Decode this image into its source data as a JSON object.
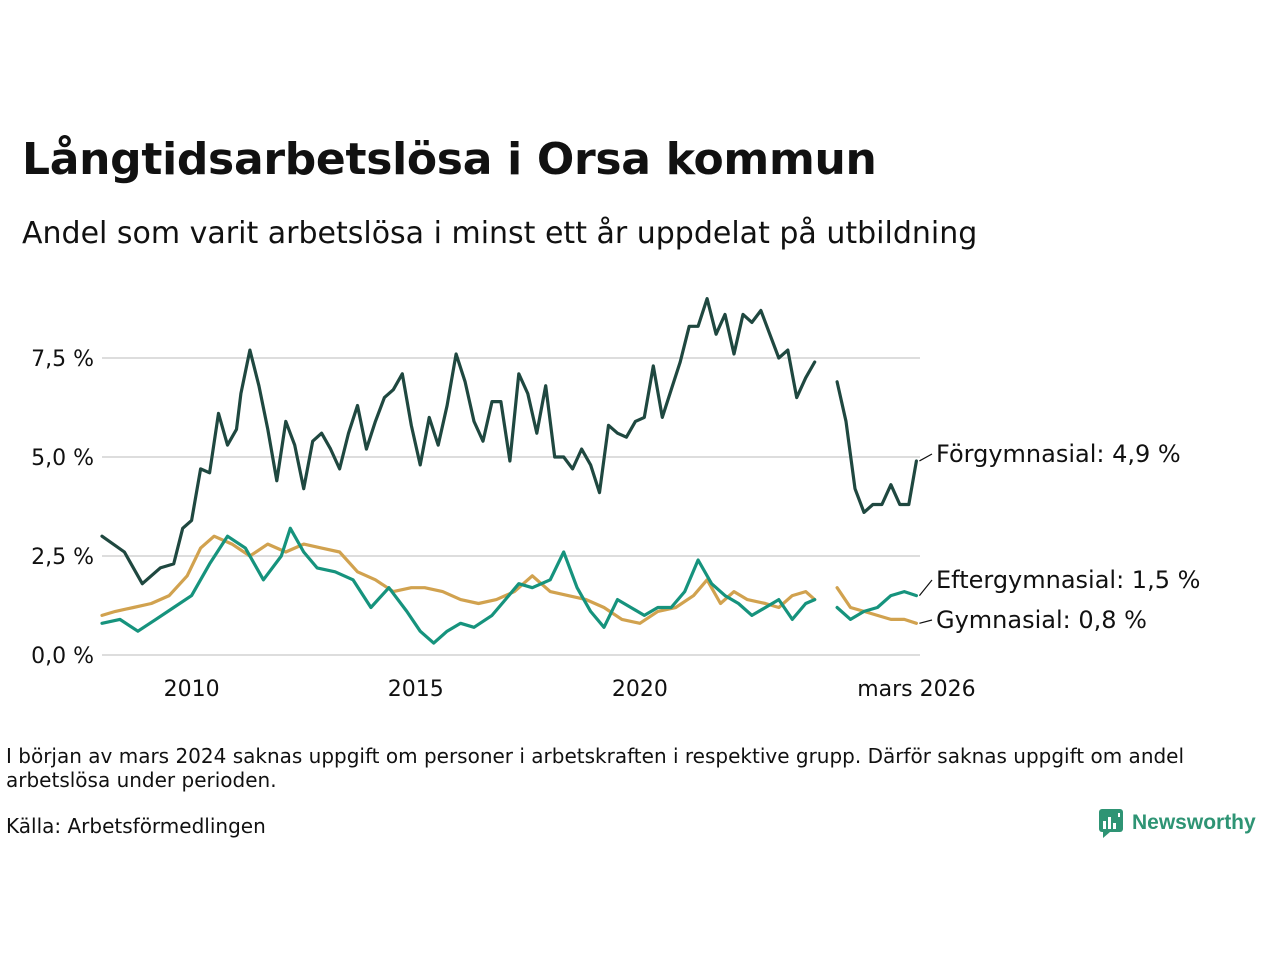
{
  "title": "Långtidsarbetslösa i Orsa kommun",
  "subtitle": "Andel som varit arbetslösa i minst ett år uppdelat på utbildning",
  "note": "I början av mars 2024 saknas uppgift om personer i arbetskraften i respektive grupp. Därför saknas uppgift om andel arbetslösa under perioden.",
  "source": "Källa: Arbetsförmedlingen",
  "logo": {
    "name": "Newsworthy",
    "icon": "newsworthy-chart-icon"
  },
  "colors": {
    "forgymnasial": "#1f4840",
    "eftergymnasial": "#16937d",
    "gymnasial": "#d1a24f",
    "grid": "#dddddd"
  },
  "chart_data": {
    "type": "line",
    "title": "Långtidsarbetslösa i Orsa kommun",
    "subtitle": "Andel som varit arbetslösa i minst ett år uppdelat på utbildning",
    "xlabel": "",
    "ylabel": "",
    "x_range": [
      2008.0,
      2026.25
    ],
    "ylim": [
      0,
      9.1
    ],
    "y_ticks": [
      0,
      2.5,
      5,
      7.5
    ],
    "y_tick_labels": [
      "0,0 %",
      "2,5 %",
      "5,0 %",
      "7,5 %"
    ],
    "x_ticks": [
      2010,
      2015,
      2020,
      2026.17
    ],
    "x_tick_labels": [
      "2010",
      "2015",
      "2020",
      "mars 2026"
    ],
    "grid": "horizontal",
    "gap": [
      2024.0,
      2024.4
    ],
    "series": [
      {
        "name": "Förgymnasial",
        "label": "Förgymnasial: 4,9 %",
        "color": "#1f4840",
        "x": [
          2008.0,
          2008.5,
          2008.9,
          2009.3,
          2009.6,
          2009.8,
          2010.0,
          2010.2,
          2010.4,
          2010.6,
          2010.8,
          2011.0,
          2011.1,
          2011.3,
          2011.5,
          2011.7,
          2011.9,
          2012.1,
          2012.3,
          2012.5,
          2012.7,
          2012.9,
          2013.1,
          2013.3,
          2013.5,
          2013.7,
          2013.9,
          2014.1,
          2014.3,
          2014.5,
          2014.7,
          2014.9,
          2015.1,
          2015.3,
          2015.5,
          2015.7,
          2015.9,
          2016.1,
          2016.3,
          2016.5,
          2016.7,
          2016.9,
          2017.1,
          2017.3,
          2017.5,
          2017.7,
          2017.9,
          2018.1,
          2018.3,
          2018.5,
          2018.7,
          2018.9,
          2019.1,
          2019.3,
          2019.5,
          2019.7,
          2019.9,
          2020.1,
          2020.3,
          2020.5,
          2020.7,
          2020.9,
          2021.1,
          2021.3,
          2021.5,
          2021.7,
          2021.9,
          2022.1,
          2022.3,
          2022.5,
          2022.7,
          2022.9,
          2023.1,
          2023.3,
          2023.5,
          2023.7,
          2023.9,
          2024.4,
          2024.6,
          2024.8,
          2025.0,
          2025.2,
          2025.4,
          2025.6,
          2025.8,
          2026.0,
          2026.17
        ],
        "values": [
          3.0,
          2.6,
          1.8,
          2.2,
          2.3,
          3.2,
          3.4,
          4.7,
          4.6,
          6.1,
          5.3,
          5.7,
          6.6,
          7.7,
          6.8,
          5.7,
          4.4,
          5.9,
          5.3,
          4.2,
          5.4,
          5.6,
          5.2,
          4.7,
          5.6,
          6.3,
          5.2,
          5.9,
          6.5,
          6.7,
          7.1,
          5.8,
          4.8,
          6.0,
          5.3,
          6.3,
          7.6,
          6.9,
          5.9,
          5.4,
          6.4,
          6.4,
          4.9,
          7.1,
          6.6,
          5.6,
          6.8,
          5.0,
          5.0,
          4.7,
          5.2,
          4.8,
          4.1,
          5.8,
          5.6,
          5.5,
          5.9,
          6.0,
          7.3,
          6.0,
          6.7,
          7.4,
          8.3,
          8.3,
          9.0,
          8.1,
          8.6,
          7.6,
          8.6,
          8.4,
          8.7,
          8.1,
          7.5,
          7.7,
          6.5,
          7.0,
          7.4,
          6.9,
          5.9,
          4.2,
          3.6,
          3.8,
          3.8,
          4.3,
          3.8,
          3.8,
          4.9
        ]
      },
      {
        "name": "Eftergymnasial",
        "label": "Eftergymnasial: 1,5 %",
        "color": "#16937d",
        "x": [
          2008.0,
          2008.4,
          2008.8,
          2009.2,
          2009.6,
          2010.0,
          2010.4,
          2010.8,
          2011.2,
          2011.6,
          2012.0,
          2012.2,
          2012.5,
          2012.8,
          2013.2,
          2013.6,
          2014.0,
          2014.4,
          2014.8,
          2015.1,
          2015.4,
          2015.7,
          2016.0,
          2016.3,
          2016.7,
          2017.0,
          2017.3,
          2017.6,
          2018.0,
          2018.3,
          2018.6,
          2018.9,
          2019.2,
          2019.5,
          2019.8,
          2020.1,
          2020.4,
          2020.7,
          2021.0,
          2021.3,
          2021.6,
          2021.9,
          2022.2,
          2022.5,
          2022.8,
          2023.1,
          2023.4,
          2023.7,
          2023.9,
          2024.4,
          2024.7,
          2025.0,
          2025.3,
          2025.6,
          2025.9,
          2026.17
        ],
        "values": [
          0.8,
          0.9,
          0.6,
          0.9,
          1.2,
          1.5,
          2.3,
          3.0,
          2.7,
          1.9,
          2.5,
          3.2,
          2.6,
          2.2,
          2.1,
          1.9,
          1.2,
          1.7,
          1.1,
          0.6,
          0.3,
          0.6,
          0.8,
          0.7,
          1.0,
          1.4,
          1.8,
          1.7,
          1.9,
          2.6,
          1.7,
          1.1,
          0.7,
          1.4,
          1.2,
          1.0,
          1.2,
          1.2,
          1.6,
          2.4,
          1.8,
          1.5,
          1.3,
          1.0,
          1.2,
          1.4,
          0.9,
          1.3,
          1.4,
          1.2,
          0.9,
          1.1,
          1.2,
          1.5,
          1.6,
          1.5
        ]
      },
      {
        "name": "Gymnasial",
        "label": "Gymnasial: 0,8 %",
        "color": "#d1a24f",
        "x": [
          2008.0,
          2008.3,
          2008.7,
          2009.1,
          2009.5,
          2009.9,
          2010.2,
          2010.5,
          2010.9,
          2011.3,
          2011.7,
          2012.1,
          2012.5,
          2012.9,
          2013.3,
          2013.7,
          2014.1,
          2014.5,
          2014.9,
          2015.2,
          2015.6,
          2016.0,
          2016.4,
          2016.8,
          2017.2,
          2017.6,
          2018.0,
          2018.4,
          2018.8,
          2019.2,
          2019.6,
          2020.0,
          2020.4,
          2020.8,
          2021.2,
          2021.5,
          2021.8,
          2022.1,
          2022.4,
          2022.8,
          2023.1,
          2023.4,
          2023.7,
          2023.9,
          2024.4,
          2024.7,
          2025.0,
          2025.3,
          2025.6,
          2025.9,
          2026.17
        ],
        "values": [
          1.0,
          1.1,
          1.2,
          1.3,
          1.5,
          2.0,
          2.7,
          3.0,
          2.8,
          2.5,
          2.8,
          2.6,
          2.8,
          2.7,
          2.6,
          2.1,
          1.9,
          1.6,
          1.7,
          1.7,
          1.6,
          1.4,
          1.3,
          1.4,
          1.6,
          2.0,
          1.6,
          1.5,
          1.4,
          1.2,
          0.9,
          0.8,
          1.1,
          1.2,
          1.5,
          1.9,
          1.3,
          1.6,
          1.4,
          1.3,
          1.2,
          1.5,
          1.6,
          1.4,
          1.7,
          1.2,
          1.1,
          1.0,
          0.9,
          0.9,
          0.8
        ]
      }
    ]
  }
}
